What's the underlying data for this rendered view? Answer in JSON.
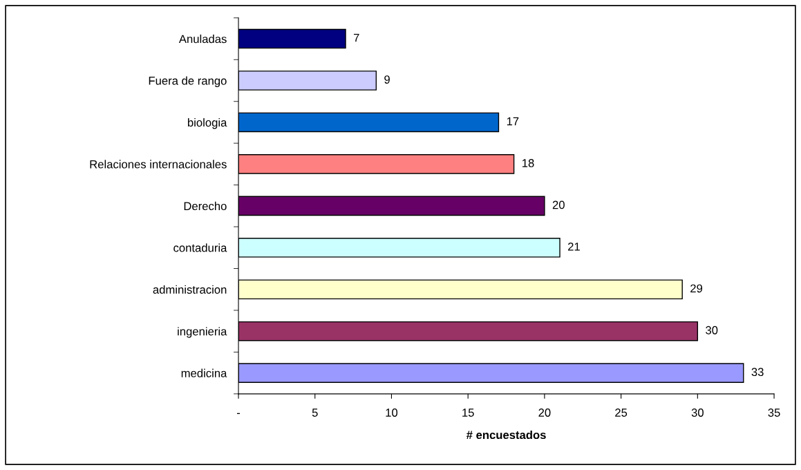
{
  "chart_data": {
    "type": "bar",
    "orientation": "horizontal",
    "xlabel": "# encuestados",
    "categories": [
      "Anuladas",
      "Fuera de rango",
      "biologia",
      "Relaciones internacionales",
      "Derecho",
      "contaduria",
      "administracion",
      "ingenieria",
      "medicina"
    ],
    "values": [
      7,
      9,
      17,
      18,
      20,
      21,
      29,
      30,
      33
    ],
    "colors": [
      "#000080",
      "#ccccff",
      "#0066cc",
      "#ff8080",
      "#660066",
      "#ccffff",
      "#ffffcc",
      "#993366",
      "#9999ff"
    ],
    "xlim": [
      0,
      35
    ],
    "xticks": [
      {
        "value": 0,
        "label": "-"
      },
      5,
      10,
      15,
      20,
      25,
      30,
      35
    ],
    "data_labels": true,
    "grid": false,
    "legend": false
  }
}
